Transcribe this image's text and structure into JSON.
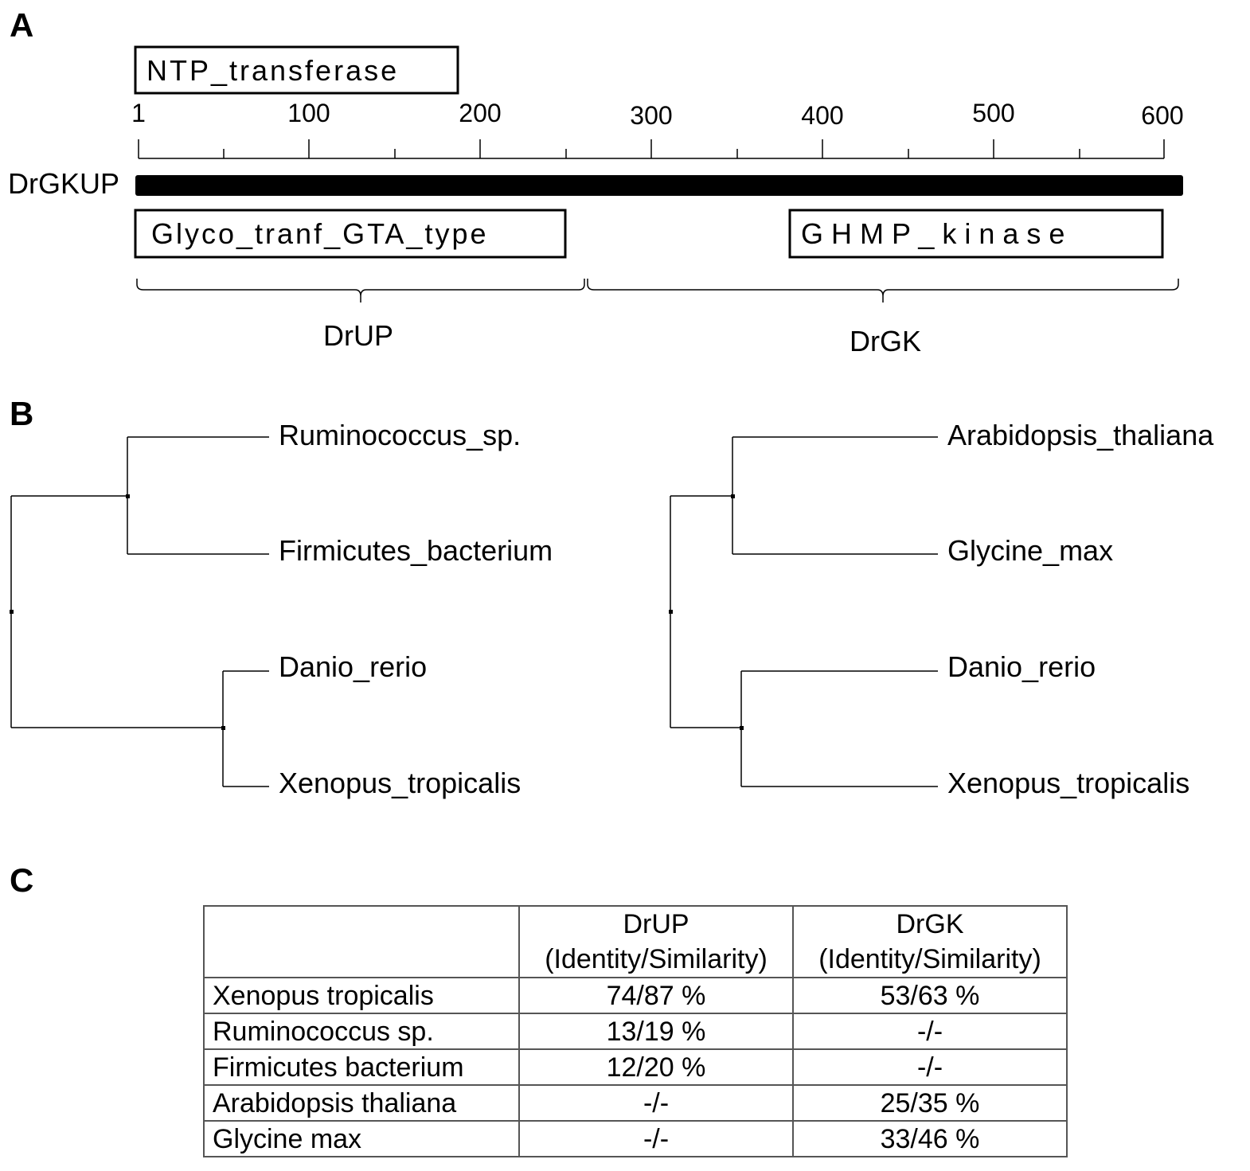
{
  "panel_a": {
    "label": "A",
    "protein_name": "DrGKUP",
    "ticks": [
      "1",
      "100",
      "200",
      "300",
      "400",
      "500",
      "600"
    ],
    "domains": {
      "ntp": "NTP_transferase",
      "glyco": "Glyco_tranf_GTA_type",
      "ghmp": "G H M P _ k i n a s e"
    },
    "segments": {
      "up": "DrUP",
      "gk": "DrGK"
    }
  },
  "panel_b": {
    "label": "B",
    "tree_left": {
      "leaves": [
        "Ruminococcus_sp.",
        "Firmicutes_bacterium",
        "Danio_rerio",
        "Xenopus_tropicalis"
      ]
    },
    "tree_right": {
      "leaves": [
        "Arabidopsis_thaliana",
        "Glycine_max",
        "Danio_rerio",
        "Xenopus_tropicalis"
      ]
    }
  },
  "panel_c": {
    "label": "C",
    "header": {
      "col1_line1": "DrUP",
      "col1_line2": "(Identity/Similarity)",
      "col2_line1": "DrGK",
      "col2_line2": "(Identity/Similarity)"
    },
    "rows": [
      {
        "species": "Xenopus tropicalis",
        "drup": "74/87 %",
        "drgk": "53/63 %"
      },
      {
        "species": "Ruminococcus sp.",
        "drup": "13/19 %",
        "drgk": "-/-"
      },
      {
        "species": "Firmicutes bacterium",
        "drup": "12/20 %",
        "drgk": "-/-"
      },
      {
        "species": "Arabidopsis thaliana",
        "drup": "-/-",
        "drgk": "25/35 %"
      },
      {
        "species": "Glycine max",
        "drup": "-/-",
        "drgk": "33/46 %"
      }
    ]
  }
}
